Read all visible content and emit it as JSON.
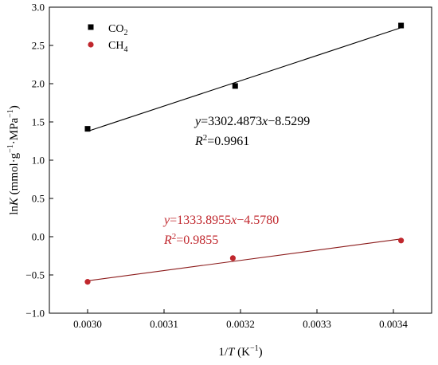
{
  "chart_data": {
    "type": "scatter",
    "xlabel": {
      "pre": "1/",
      "italic": "T",
      "post": " (K",
      "sup": "−1",
      "end": ")"
    },
    "ylabel": {
      "pre": "ln",
      "italic": "K",
      "mid1": " (mmol·g",
      "sup1": "−1",
      "mid2": "·MPa",
      "sup2": "−1",
      "end": ")"
    },
    "xlim": [
      0.00295,
      0.00345
    ],
    "ylim": [
      -1.0,
      3.0
    ],
    "xticks": [
      0.003,
      0.0031,
      0.0032,
      0.0033,
      0.0034
    ],
    "xtick_labels": [
      "0.0030",
      "0.0031",
      "0.0032",
      "0.0033",
      "0.0034"
    ],
    "yticks": [
      -1.0,
      -0.5,
      0.0,
      0.5,
      1.0,
      1.5,
      2.0,
      2.5,
      3.0
    ],
    "ytick_labels": [
      "−1.0",
      "−0.5",
      "0.0",
      "0.5",
      "1.0",
      "1.5",
      "2.0",
      "2.5",
      "3.0"
    ],
    "grid": false,
    "legend_position": "top-left",
    "series": [
      {
        "name": "CO2",
        "legend": {
          "base": "CO",
          "sub": "2"
        },
        "marker": "square",
        "color": "#000000",
        "line_color": "#000000",
        "x": [
          0.003,
          0.003193,
          0.00341
        ],
        "y": [
          1.41,
          1.97,
          2.76
        ],
        "fit": {
          "slope": 3302.4873,
          "intercept": -8.5299
        },
        "fit_x": [
          0.003,
          0.00341
        ],
        "equation": {
          "y": "y",
          "eq": "=3302.4873",
          "x": "x",
          "rest": "−8.5299"
        },
        "r2": {
          "R": "R",
          "sup": "2",
          "value": "=0.9961"
        }
      },
      {
        "name": "CH4",
        "legend": {
          "base": "CH",
          "sub": "4"
        },
        "marker": "circle",
        "color": "#c0272d",
        "line_color": "#8b1a1a",
        "x": [
          0.003,
          0.00319,
          0.00341
        ],
        "y": [
          -0.59,
          -0.28,
          -0.05
        ],
        "fit": {
          "slope": 1333.8955,
          "intercept": -4.578
        },
        "fit_x": [
          0.003,
          0.00341
        ],
        "equation": {
          "y": "y",
          "eq": "=1333.8955",
          "x": "x",
          "rest": "−4.5780"
        },
        "r2": {
          "R": "R",
          "sup": "2",
          "value": "=0.9855"
        }
      }
    ]
  }
}
